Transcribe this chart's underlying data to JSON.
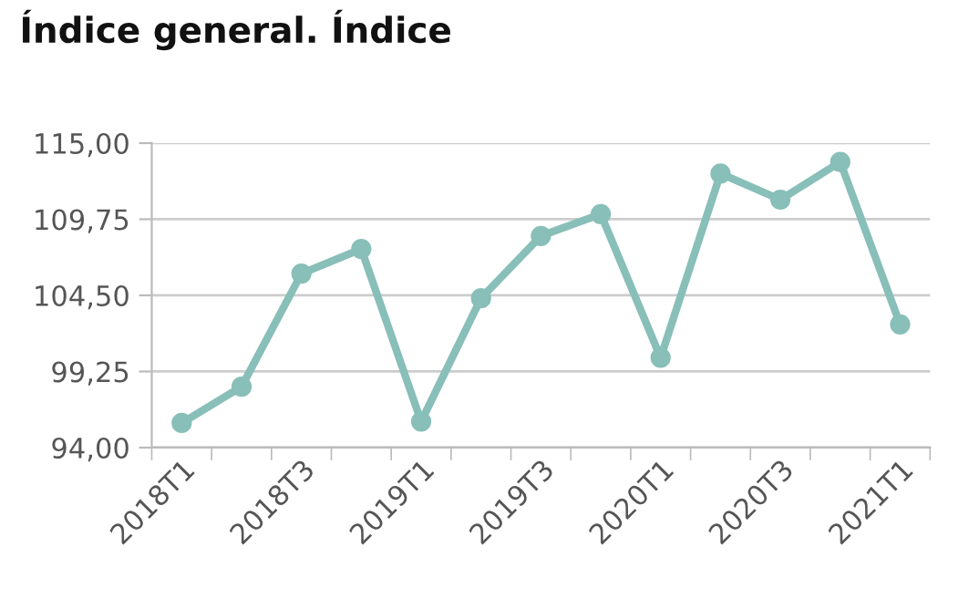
{
  "chart_data": {
    "type": "line",
    "title": "Índice general. Índice",
    "categories": [
      "2018T1",
      null,
      "2018T3",
      null,
      "2019T1",
      null,
      "2019T3",
      null,
      "2020T1",
      null,
      "2020T3",
      null,
      "2021T1"
    ],
    "series": [
      {
        "color": "#88bfb8",
        "values": [
          95.7,
          98.2,
          106.0,
          107.7,
          95.8,
          104.3,
          108.6,
          110.1,
          100.2,
          112.9,
          111.1,
          113.7,
          102.5
        ]
      }
    ],
    "ylim": [
      94,
      115
    ],
    "yticks": [
      {
        "value": 94,
        "label": "94,00"
      },
      {
        "value": 99.25,
        "label": "99,25"
      },
      {
        "value": 104.5,
        "label": "104,50"
      },
      {
        "value": 109.75,
        "label": "109,75"
      },
      {
        "value": 115,
        "label": "115,00"
      }
    ],
    "grid": "y",
    "marker": "circle",
    "line_style": "solid"
  }
}
